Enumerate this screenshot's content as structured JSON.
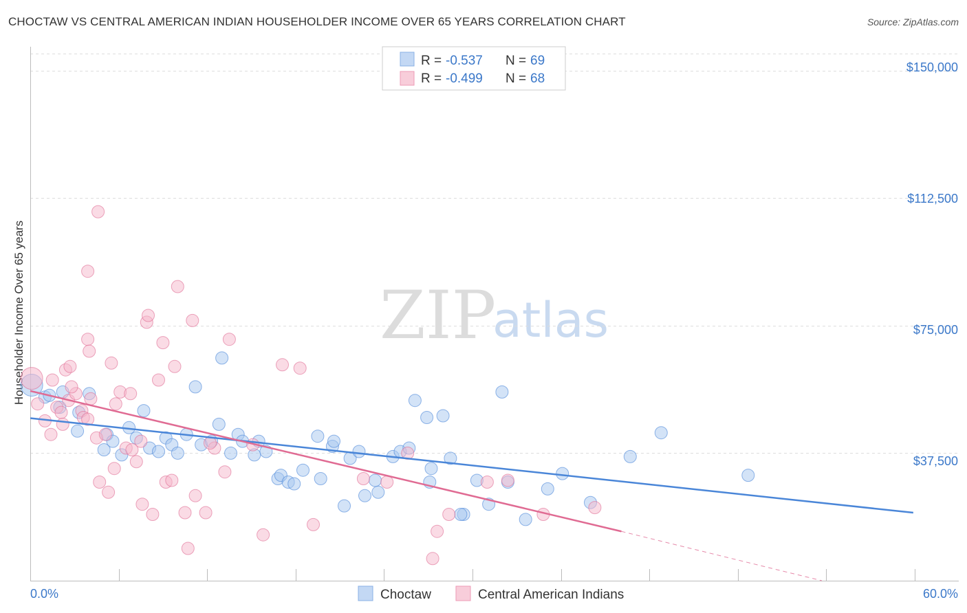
{
  "header": {
    "title": "CHOCTAW VS CENTRAL AMERICAN INDIAN HOUSEHOLDER INCOME OVER 65 YEARS CORRELATION CHART",
    "source": "Source: ZipAtlas.com"
  },
  "watermark": {
    "zip": "ZIP",
    "atlas": "atlas"
  },
  "legend_top": {
    "rows": [
      {
        "r_label": "R =",
        "r_value": "-0.537",
        "n_label": "N =",
        "n_value": "69",
        "color": "#a8c8f0"
      },
      {
        "r_label": "R =",
        "r_value": "-0.499",
        "n_label": "N =",
        "n_value": "68",
        "color": "#f5b8cc"
      }
    ]
  },
  "legend_bottom": [
    {
      "label": "Choctaw",
      "color": "#a8c8f0"
    },
    {
      "label": "Central American Indians",
      "color": "#f5b8cc"
    }
  ],
  "axes": {
    "ylabel": "Householder Income Over 65 years",
    "y_ticks": [
      "$150,000",
      "$112,500",
      "$75,000",
      "$37,500"
    ],
    "x_min_label": "0.0%",
    "x_max_label": "60.0%"
  },
  "chart_data": {
    "type": "scatter",
    "title": "CHOCTAW VS CENTRAL AMERICAN INDIAN HOUSEHOLDER INCOME OVER 65 YEARS CORRELATION CHART",
    "xlabel": "",
    "ylabel": "Householder Income Over 65 years",
    "xlim": [
      0,
      60
    ],
    "ylim": [
      0,
      155000
    ],
    "y_ticks": [
      37500,
      75000,
      112500,
      150000
    ],
    "grid": true,
    "legend_placement": "top-center",
    "series": [
      {
        "name": "Choctaw",
        "color": "#4a86d8",
        "fill": "#a8c8f0",
        "r": -0.537,
        "n": 69,
        "trend": {
          "x": [
            0,
            59.9
          ],
          "y": [
            47800,
            20000
          ]
        },
        "points": [
          [
            0.1,
            57500
          ],
          [
            1.0,
            54000
          ],
          [
            1.3,
            54500
          ],
          [
            2.0,
            51000
          ],
          [
            2.2,
            55500
          ],
          [
            3.3,
            49500
          ],
          [
            4.0,
            55000
          ],
          [
            3.2,
            44000
          ],
          [
            5.0,
            38500
          ],
          [
            5.2,
            43000
          ],
          [
            5.6,
            41000
          ],
          [
            6.2,
            37000
          ],
          [
            6.7,
            45000
          ],
          [
            7.2,
            42000
          ],
          [
            7.7,
            50000
          ],
          [
            8.1,
            39000
          ],
          [
            8.7,
            38000
          ],
          [
            9.2,
            42000
          ],
          [
            9.6,
            40000
          ],
          [
            10.0,
            37500
          ],
          [
            10.6,
            43000
          ],
          [
            11.2,
            57000
          ],
          [
            11.6,
            40000
          ],
          [
            12.3,
            41000
          ],
          [
            12.8,
            46000
          ],
          [
            13.0,
            65500
          ],
          [
            13.6,
            37500
          ],
          [
            14.1,
            43000
          ],
          [
            14.4,
            41000
          ],
          [
            15.2,
            37000
          ],
          [
            15.5,
            41000
          ],
          [
            16.0,
            38000
          ],
          [
            16.8,
            30000
          ],
          [
            17.0,
            31000
          ],
          [
            17.5,
            29000
          ],
          [
            17.9,
            28500
          ],
          [
            18.5,
            32500
          ],
          [
            19.7,
            30000
          ],
          [
            19.5,
            42500
          ],
          [
            20.5,
            39500
          ],
          [
            20.6,
            41000
          ],
          [
            21.7,
            36000
          ],
          [
            22.3,
            38000
          ],
          [
            21.3,
            22000
          ],
          [
            22.7,
            25000
          ],
          [
            23.6,
            26000
          ],
          [
            23.4,
            29500
          ],
          [
            24.6,
            36500
          ],
          [
            25.1,
            38000
          ],
          [
            25.7,
            39000
          ],
          [
            26.1,
            53000
          ],
          [
            26.9,
            48000
          ],
          [
            27.2,
            33000
          ],
          [
            28.0,
            48500
          ],
          [
            28.5,
            36000
          ],
          [
            29.4,
            19500
          ],
          [
            30.3,
            29500
          ],
          [
            31.1,
            22500
          ],
          [
            32.4,
            29000
          ],
          [
            32.0,
            55500
          ],
          [
            33.6,
            18000
          ],
          [
            35.1,
            27000
          ],
          [
            36.1,
            31500
          ],
          [
            38.0,
            23000
          ],
          [
            40.7,
            36500
          ],
          [
            42.8,
            43500
          ],
          [
            48.7,
            31000
          ],
          [
            29.2,
            19500
          ],
          [
            27.1,
            29000
          ]
        ]
      },
      {
        "name": "Central American Indians",
        "color": "#e06b93",
        "fill": "#f5b8cc",
        "r": -0.499,
        "n": 68,
        "trend": {
          "x": [
            0,
            40.1
          ],
          "y": [
            55800,
            14500
          ]
        },
        "trend_dashed": {
          "x": [
            40.1,
            53.7
          ],
          "y": [
            14500,
            0
          ]
        },
        "points": [
          [
            0.1,
            59500
          ],
          [
            0.5,
            52000
          ],
          [
            1.0,
            47000
          ],
          [
            1.4,
            43000
          ],
          [
            1.5,
            59000
          ],
          [
            1.8,
            51000
          ],
          [
            2.1,
            49500
          ],
          [
            2.2,
            46000
          ],
          [
            2.4,
            62000
          ],
          [
            2.6,
            53000
          ],
          [
            2.7,
            63000
          ],
          [
            3.1,
            55000
          ],
          [
            3.5,
            50000
          ],
          [
            3.6,
            48000
          ],
          [
            3.9,
            47500
          ],
          [
            3.9,
            71000
          ],
          [
            3.9,
            91000
          ],
          [
            4.0,
            67500
          ],
          [
            4.1,
            53500
          ],
          [
            4.6,
            108500
          ],
          [
            4.5,
            42000
          ],
          [
            4.7,
            29000
          ],
          [
            5.1,
            43000
          ],
          [
            5.3,
            26000
          ],
          [
            5.5,
            64000
          ],
          [
            5.7,
            33000
          ],
          [
            5.8,
            52000
          ],
          [
            6.1,
            55500
          ],
          [
            6.5,
            39000
          ],
          [
            6.9,
            38500
          ],
          [
            7.2,
            35000
          ],
          [
            7.5,
            41000
          ],
          [
            7.6,
            22500
          ],
          [
            7.9,
            76000
          ],
          [
            8.0,
            78000
          ],
          [
            8.3,
            19500
          ],
          [
            8.7,
            59000
          ],
          [
            9.0,
            70000
          ],
          [
            9.2,
            29000
          ],
          [
            9.6,
            29500
          ],
          [
            9.8,
            63000
          ],
          [
            10.0,
            86500
          ],
          [
            10.5,
            20000
          ],
          [
            10.7,
            9500
          ],
          [
            11.0,
            76500
          ],
          [
            11.2,
            25000
          ],
          [
            11.9,
            20000
          ],
          [
            12.5,
            39000
          ],
          [
            13.2,
            32000
          ],
          [
            13.5,
            71000
          ],
          [
            15.1,
            40000
          ],
          [
            15.8,
            13500
          ],
          [
            17.1,
            63500
          ],
          [
            18.3,
            62500
          ],
          [
            19.2,
            16500
          ],
          [
            22.6,
            30000
          ],
          [
            25.6,
            37500
          ],
          [
            27.3,
            6500
          ],
          [
            27.6,
            14500
          ],
          [
            28.4,
            19500
          ],
          [
            31.0,
            29000
          ],
          [
            32.4,
            29500
          ],
          [
            34.8,
            19500
          ],
          [
            38.3,
            21500
          ],
          [
            12.2,
            40500
          ],
          [
            2.8,
            57000
          ],
          [
            24.2,
            29000
          ],
          [
            6.8,
            55000
          ]
        ]
      }
    ]
  }
}
